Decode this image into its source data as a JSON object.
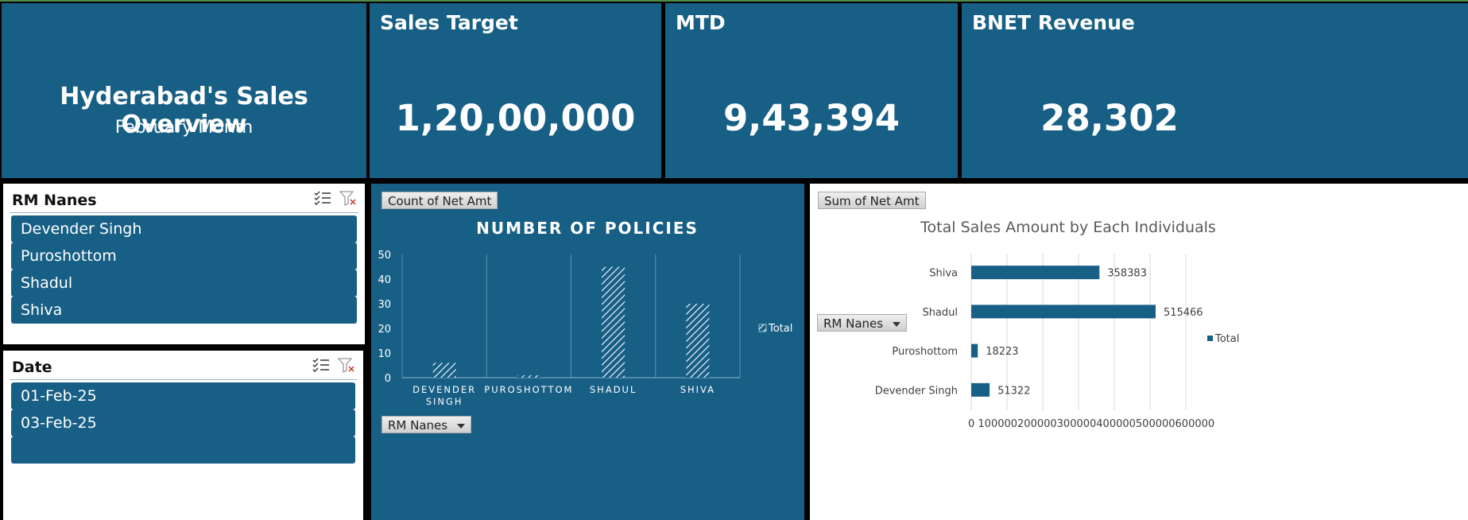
{
  "header": {
    "title": "Hyderabad's Sales Overview",
    "subtitle": "February Month"
  },
  "kpis": [
    {
      "label": "Sales Target",
      "value": "1,20,00,000"
    },
    {
      "label": "MTD",
      "value": "9,43,394"
    },
    {
      "label": "BNET Revenue",
      "value": "28,302"
    }
  ],
  "slicers": {
    "rm": {
      "title": "RM Nanes",
      "items": [
        "Devender Singh",
        "Puroshottom",
        "Shadul",
        "Shiva"
      ]
    },
    "date": {
      "title": "Date",
      "items": [
        "01-Feb-25",
        "03-Feb-25"
      ]
    }
  },
  "pivot_buttons": {
    "count_net_amt": "Count of Net Amt",
    "sum_net_amt": "Sum of Net Amt",
    "rm_nanes_chart1": "RM Nanes",
    "rm_nanes_chart2": "RM Nanes"
  },
  "colors": {
    "panel_blue": "#175f85",
    "background": "#000000",
    "slicer_bg": "#ffffff"
  },
  "chart_data": [
    {
      "type": "bar",
      "title": "NUMBER OF POLICIES",
      "categories": [
        "DEVENDER SINGH",
        "PUROSHOTTOM",
        "SHADUL",
        "SHIVA"
      ],
      "category_lines": [
        [
          "DEVENDER",
          "SINGH"
        ],
        [
          "PUROSHOTTOM"
        ],
        [
          "SHADUL"
        ],
        [
          "SHIVA"
        ]
      ],
      "series": [
        {
          "name": "Total",
          "values": [
            6,
            1,
            45,
            30
          ]
        }
      ],
      "ylim": [
        0,
        50
      ],
      "yticks": [
        0,
        10,
        20,
        30,
        40,
        50
      ],
      "grid": "vertical",
      "legend": "right",
      "fill": "hatched"
    },
    {
      "type": "bar",
      "orientation": "horizontal",
      "title": "Total Sales Amount by Each Individuals",
      "categories": [
        "Shiva",
        "Shadul",
        "Puroshottom",
        "Devender Singh"
      ],
      "series": [
        {
          "name": "Total",
          "values": [
            358383,
            515466,
            18223,
            51322
          ]
        }
      ],
      "xlim": [
        0,
        600000
      ],
      "xticks": [
        0,
        100000,
        200000,
        300000,
        400000,
        500000,
        600000
      ],
      "tick_label_text": "0  100000200000300000400000500000600000",
      "grid": "vertical",
      "legend": "right",
      "color": "#175f85"
    }
  ]
}
